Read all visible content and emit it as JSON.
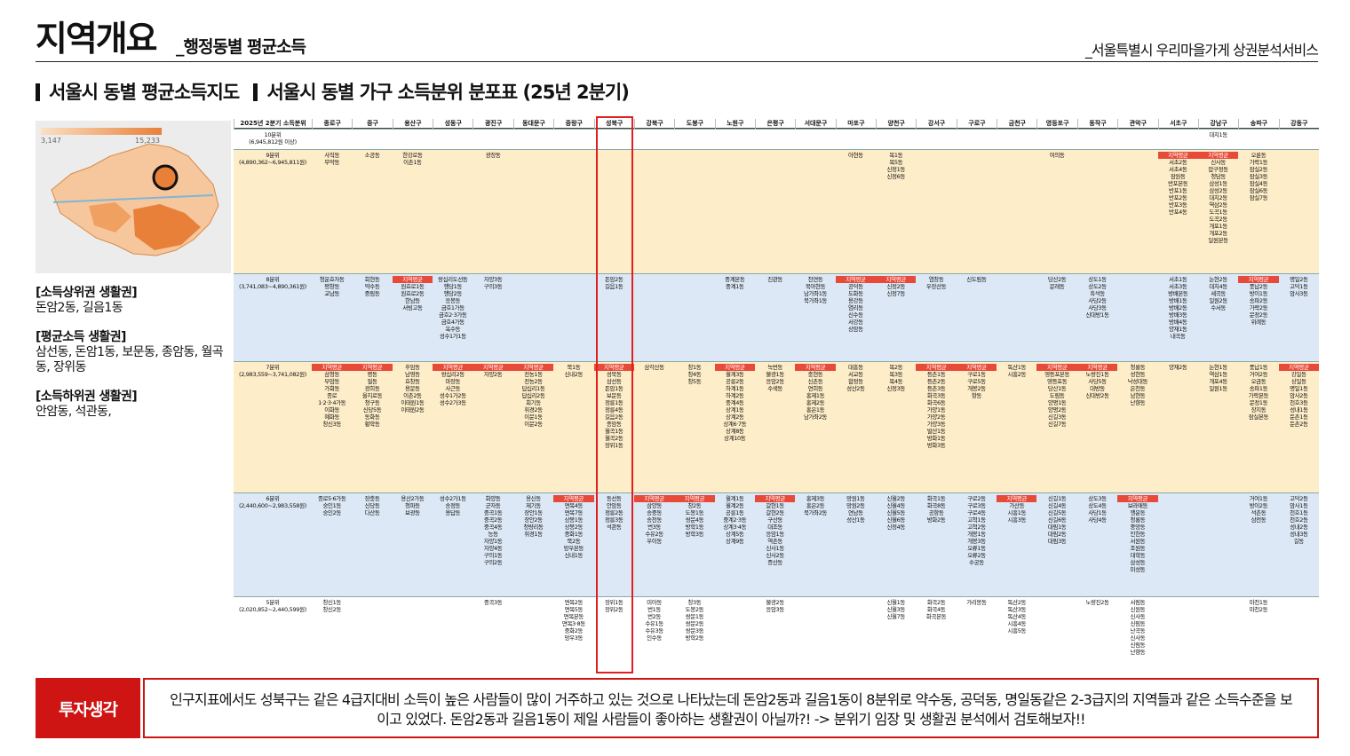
{
  "header": {
    "title": "지역개요",
    "subtitle": "_행정동별 평균소득",
    "service": "_서울특별시 우리마을가게 상권분석서비스"
  },
  "section": {
    "map_title": "서울시 동별 평균소득지도",
    "table_title": "서울시 동별 가구 소득분위 분포표 (25년 2분기)"
  },
  "map": {
    "min": "3,147",
    "max": "15,233"
  },
  "notes": [
    {
      "title": "[소득상위권 생활권]",
      "text": "돈암2동, 길음1동"
    },
    {
      "title": "[평균소득 생활권]",
      "text": "삼선동, 돈암1동, 보문동, 종암동, 월곡동, 장위동"
    },
    {
      "title": "[소득하위권 생활권]",
      "text": "안암동, 석관동,"
    }
  ],
  "table": {
    "header_label": "2025년 2분기 소득분위",
    "districts": [
      "종로구",
      "중구",
      "용산구",
      "성동구",
      "광진구",
      "동대문구",
      "중랑구",
      "성북구",
      "강북구",
      "도봉구",
      "노원구",
      "은평구",
      "서대문구",
      "마포구",
      "양천구",
      "강서구",
      "구로구",
      "금천구",
      "영등포구",
      "동작구",
      "관악구",
      "서초구",
      "강남구",
      "송파구",
      "강동구"
    ],
    "avg_label": "지역평균",
    "tiers": [
      {
        "label": "10분위\n(6,945,812원 이상)",
        "colors": "#ffffff",
        "cells": {
          "22": [
            "대치1동"
          ]
        }
      },
      {
        "label": "9분위\n(4,890,362~6,945,811원)",
        "colors": "#fdedc8",
        "cells": {
          "0": [
            "사직동",
            "무악동"
          ],
          "1": [
            "소공동"
          ],
          "2": [
            "한강로동",
            "이촌1동"
          ],
          "4": [
            "광장동"
          ],
          "13": [
            "아현동"
          ],
          "14": [
            "목1동",
            "목5동",
            "신정1동",
            "신정6동"
          ],
          "18": [
            "여의동"
          ],
          "21": [
            "@지역평균",
            "서초2동",
            "서초4동",
            "잠원동",
            "반포본동",
            "반포1동",
            "반포2동",
            "반포3동",
            "반포4동"
          ],
          "22": [
            "@지역평균",
            "신사동",
            "압구정동",
            "청담동",
            "삼성1동",
            "삼성2동",
            "대치2동",
            "역삼2동",
            "도곡1동",
            "도곡2동",
            "개포1동",
            "개포2동",
            "일원본동"
          ],
          "23": [
            "오륜동",
            "가락1동",
            "잠실2동",
            "잠실3동",
            "잠실4동",
            "잠실6동",
            "잠실7동"
          ]
        }
      },
      {
        "label": "8분위\n(3,741,083~4,890,361원)",
        "colors": "#dce8f5",
        "cells": {
          "0": [
            "청운효자동",
            "평창동",
            "교남동"
          ],
          "1": [
            "회현동",
            "약수동",
            "중림동"
          ],
          "2": [
            "@지역평균",
            "원효로1동",
            "원효로2동",
            "한남동",
            "서빙고동"
          ],
          "3": [
            "왕십리도선동",
            "행당1동",
            "행당2동",
            "응봉동",
            "금호1가동",
            "금호2·3가동",
            "금호4가동",
            "옥수동",
            "성수1가1동"
          ],
          "4": [
            "자양3동",
            "구의3동"
          ],
          "7": [
            "돈암2동",
            "길음1동"
          ],
          "10": [
            "중계본동",
            "중계1동"
          ],
          "11": [
            "진관동"
          ],
          "12": [
            "천연동",
            "북아현동",
            "남가좌1동",
            "북가좌1동"
          ],
          "13": [
            "@지역평균",
            "공덕동",
            "도화동",
            "용강동",
            "염리동",
            "신수동",
            "서강동",
            "상암동"
          ],
          "14": [
            "@지역평균",
            "신정2동",
            "신정7동"
          ],
          "15": [
            "염창동",
            "우장산동"
          ],
          "16": [
            "신도림동"
          ],
          "18": [
            "당산2동",
            "문래동"
          ],
          "19": [
            "상도1동",
            "상도2동",
            "흑석동",
            "사당2동",
            "사당3동",
            "신대방1동"
          ],
          "21": [
            "서초1동",
            "서초3동",
            "방배본동",
            "방배1동",
            "방배2동",
            "방배3동",
            "방배4동",
            "양재1동",
            "내곡동"
          ],
          "22": [
            "논현2동",
            "대치4동",
            "세곡동",
            "일원2동",
            "수서동"
          ],
          "23": [
            "@지역평균",
            "풍납2동",
            "방이1동",
            "송파2동",
            "가락2동",
            "문정2동",
            "위례동"
          ],
          "24": [
            "명일2동",
            "고덕1동",
            "암사3동"
          ]
        }
      },
      {
        "label": "7분위\n(2,983,559~3,741,082원)",
        "colors": "#fdedc8",
        "cells": {
          "0": [
            "@지역평균",
            "삼청동",
            "부암동",
            "가회동",
            "종로",
            "1·2·3·4가동",
            "이화동",
            "혜화동",
            "창신3동"
          ],
          "1": [
            "@지역평균",
            "명동",
            "필동",
            "광희동",
            "을지로동",
            "청구동",
            "신당5동",
            "동화동",
            "황학동"
          ],
          "2": [
            "후암동",
            "남영동",
            "효창동",
            "용문동",
            "이촌2동",
            "이태원1동",
            "이태원2동"
          ],
          "3": [
            "@지역평균",
            "왕십리2동",
            "마장동",
            "사근동",
            "성수1가2동",
            "성수2가3동"
          ],
          "4": [
            "@지역평균",
            "자양2동"
          ],
          "5": [
            "@지역평균",
            "전농1동",
            "전농2동",
            "답십리1동",
            "답십리2동",
            "회기동",
            "휘경2동",
            "이문1동",
            "이문2동"
          ],
          "6": [
            "묵1동",
            "신내2동"
          ],
          "7": [
            "@지역평균",
            "성북동",
            "삼선동",
            "돈암1동",
            "보문동",
            "정릉1동",
            "정릉4동",
            "길음2동",
            "종암동",
            "월곡1동",
            "월곡2동",
            "장위1동"
          ],
          "8": [
            "삼각산동"
          ],
          "9": [
            "창1동",
            "창4동",
            "창5동"
          ],
          "10": [
            "@지역평균",
            "월계3동",
            "공릉2동",
            "하계1동",
            "하계2동",
            "중계4동",
            "상계1동",
            "상계2동",
            "상계6·7동",
            "상계8동",
            "상계10동"
          ],
          "11": [
            "녹번동",
            "불광1동",
            "응암2동",
            "수색동"
          ],
          "12": [
            "@지역평균",
            "충현동",
            "신촌동",
            "연희동",
            "홍제1동",
            "홍제2동",
            "홍은1동",
            "남가좌2동"
          ],
          "13": [
            "대흥동",
            "서교동",
            "합정동",
            "성산2동"
          ],
          "14": [
            "목2동",
            "목3동",
            "목4동",
            "신정3동"
          ],
          "15": [
            "@지역평균",
            "등촌1동",
            "등촌2동",
            "등촌3동",
            "화곡3동",
            "화곡6동",
            "가양1동",
            "가양2동",
            "가양3동",
            "발산1동",
            "방화1동",
            "방화3동"
          ],
          "16": [
            "@지역평균",
            "구로1동",
            "구로5동",
            "개봉2동",
            "항동"
          ],
          "17": [
            "독산1동",
            "시흥2동"
          ],
          "18": [
            "@지역평균",
            "영등포본동",
            "영등포동",
            "당산1동",
            "도림동",
            "양평1동",
            "양평2동",
            "신길3동",
            "신길7동"
          ],
          "19": [
            "@지역평균",
            "노량진1동",
            "사당5동",
            "대방동",
            "신대방2동"
          ],
          "20": [
            "청룡동",
            "성현동",
            "낙성대동",
            "은천동",
            "남현동",
            "난향동"
          ],
          "21": [
            "양재2동"
          ],
          "22": [
            "논현1동",
            "역삼1동",
            "개포4동",
            "일원1동"
          ],
          "23": [
            "풍납1동",
            "거여2동",
            "오금동",
            "송파1동",
            "가락본동",
            "문정1동",
            "장지동",
            "잠실본동"
          ],
          "24": [
            "@지역평균",
            "강일동",
            "상일동",
            "명일1동",
            "암사2동",
            "천호3동",
            "성내1동",
            "둔촌1동",
            "둔촌2동"
          ]
        }
      },
      {
        "label": "6분위\n(2,440,600~2,983,558원)",
        "colors": "#dce8f5",
        "cells": {
          "0": [
            "종로5·6가동",
            "숭인1동",
            "숭인2동"
          ],
          "1": [
            "장충동",
            "신당동",
            "다산동"
          ],
          "2": [
            "용산2가동",
            "청파동",
            "보광동"
          ],
          "3": [
            "성수2가1동",
            "송정동",
            "용답동"
          ],
          "4": [
            "화양동",
            "군자동",
            "중곡1동",
            "중곡2동",
            "중곡4동",
            "능동",
            "자양1동",
            "자양4동",
            "구의1동",
            "구의2동"
          ],
          "5": [
            "용신동",
            "제기동",
            "장안1동",
            "장안2동",
            "청량리동",
            "휘경1동"
          ],
          "6": [
            "@지역평균",
            "면목4동",
            "면목7동",
            "상봉1동",
            "상봉2동",
            "중화1동",
            "묵2동",
            "망우본동",
            "신내1동"
          ],
          "7": [
            "동선동",
            "안암동",
            "정릉2동",
            "정릉3동",
            "석관동"
          ],
          "8": [
            "@지역평균",
            "삼양동",
            "송중동",
            "송천동",
            "번3동",
            "수유2동",
            "우이동"
          ],
          "9": [
            "@지역평균",
            "창2동",
            "도봉1동",
            "쌍문4동",
            "방학1동",
            "방학3동"
          ],
          "10": [
            "월계1동",
            "월계2동",
            "공릉1동",
            "중계2·3동",
            "상계3·4동",
            "상계5동",
            "상계9동"
          ],
          "11": [
            "@지역평균",
            "갈현1동",
            "갈현2동",
            "구산동",
            "대조동",
            "응암1동",
            "역촌동",
            "신사1동",
            "신사2동",
            "증산동"
          ],
          "12": [
            "홍제3동",
            "홍은2동",
            "북가좌2동"
          ],
          "13": [
            "망원1동",
            "망원2동",
            "연남동",
            "성산1동"
          ],
          "14": [
            "신월2동",
            "신월4동",
            "신월5동",
            "신월6동",
            "신정4동"
          ],
          "15": [
            "화곡1동",
            "화곡8동",
            "공항동",
            "방화2동"
          ],
          "16": [
            "구로2동",
            "구로3동",
            "구로4동",
            "고척1동",
            "고척2동",
            "개봉1동",
            "개봉3동",
            "오류1동",
            "오류2동",
            "수궁동"
          ],
          "17": [
            "@지역평균",
            "가산동",
            "시흥1동",
            "시흥3동"
          ],
          "18": [
            "신길1동",
            "신길4동",
            "신길5동",
            "신길6동",
            "대림1동",
            "대림2동",
            "대림3동"
          ],
          "19": [
            "상도3동",
            "상도4동",
            "사당1동",
            "사당4동"
          ],
          "20": [
            "@지역평균",
            "보라매동",
            "행운동",
            "청룡동",
            "중앙동",
            "인헌동",
            "서원동",
            "조원동",
            "대학동",
            "삼성동",
            "미성동"
          ],
          "23": [
            "거여1동",
            "방이2동",
            "석촌동",
            "삼전동"
          ],
          "24": [
            "고덕2동",
            "암사1동",
            "천호1동",
            "천호2동",
            "성내2동",
            "성내3동",
            "길동"
          ]
        }
      },
      {
        "label": "5분위\n(2,020,852~2,440,599원)",
        "colors": "#ffffff",
        "cells": {
          "0": [
            "창신1동",
            "창신2동"
          ],
          "4": [
            "중곡3동"
          ],
          "6": [
            "면목2동",
            "면목5동",
            "면목본동",
            "면목3·8동",
            "중화2동",
            "망우3동"
          ],
          "7": [
            "장위1동",
            "장위2동"
          ],
          "8": [
            "미아동",
            "번1동",
            "번2동",
            "수유1동",
            "수유3동",
            "인수동"
          ],
          "9": [
            "창3동",
            "도봉2동",
            "쌍문1동",
            "쌍문2동",
            "쌍문3동",
            "방학2동"
          ],
          "11": [
            "불광2동",
            "응암3동"
          ],
          "14": [
            "신월1동",
            "신월3동",
            "신월7동"
          ],
          "15": [
            "화곡2동",
            "화곡4동",
            "화곡본동"
          ],
          "16": [
            "가리봉동"
          ],
          "17": [
            "독산2동",
            "독산3동",
            "독산4동",
            "시흥4동",
            "시흥5동"
          ],
          "19": [
            "노량진2동"
          ],
          "20": [
            "서림동",
            "신원동",
            "신사동",
            "신림동",
            "난곡동",
            "신사동",
            "신림동",
            "난향동"
          ],
          "23": [
            "마천1동",
            "마천2동"
          ]
        }
      }
    ]
  },
  "footer": {
    "tag": "투자생각",
    "text": "인구지표에서도 성북구는 같은 4급지대비 소득이 높은 사람들이 많이 거주하고 있는 것으로 나타났는데 돈암2동과 길음1동이 8분위로 약수동, 공덕동, 명일동같은 2-3급지의 지역들과 같은 소득수준을 보이고 있었다. 돈암2동과 길음1동이 제일 사람들이 좋아하는 생활권이 아닐까?! -> 분위기 임장 및 생활권 분석에서 검토해보자!!"
  }
}
